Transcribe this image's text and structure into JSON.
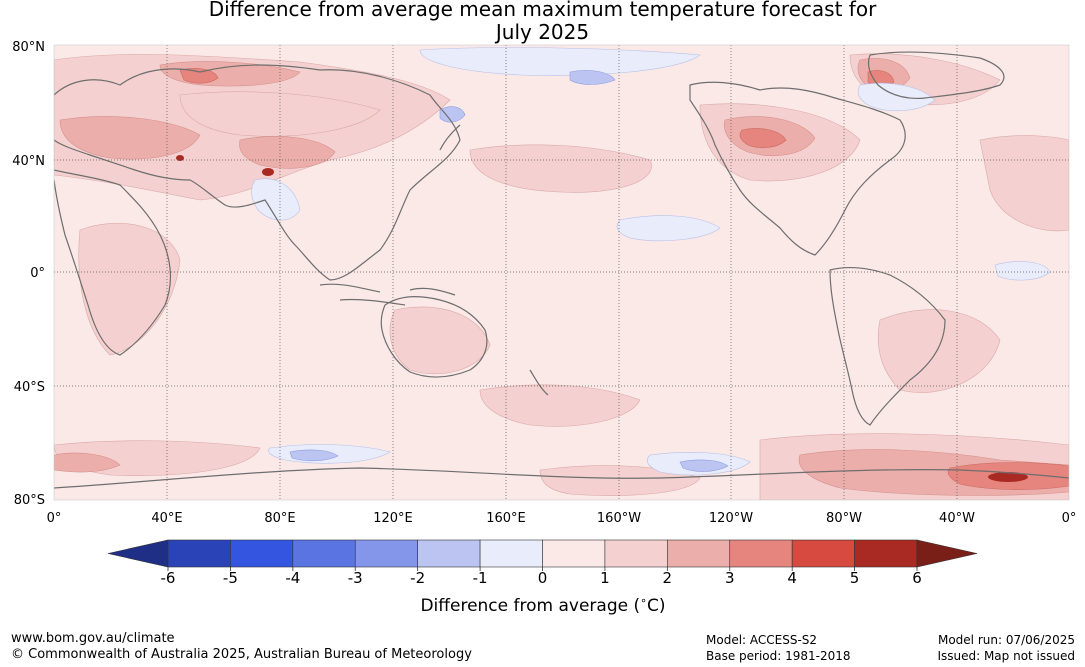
{
  "title": {
    "line1": "Difference from average mean maximum temperature forecast for",
    "line2": "July 2025"
  },
  "map": {
    "lat_labels": [
      "80°N",
      "40°N",
      "0°",
      "40°S",
      "80°S"
    ],
    "lon_labels": [
      "0°",
      "40°E",
      "80°E",
      "120°E",
      "160°E",
      "160°W",
      "120°W",
      "80°W",
      "40°W",
      "0°"
    ],
    "background_color": "#fbe9e8"
  },
  "colorbar": {
    "label": "Difference from average ($^\\circ$C)",
    "label_text": "Difference from average (",
    "label_unit": "C)",
    "ticks": [
      "-6",
      "-5",
      "-4",
      "-3",
      "-2",
      "-1",
      "0",
      "1",
      "2",
      "3",
      "4",
      "5",
      "6"
    ],
    "colors": [
      "#1f2f85",
      "#2a44b8",
      "#3455e0",
      "#5a74e2",
      "#8496e9",
      "#bcc5f2",
      "#e8ecfb",
      "#fbe9e8",
      "#f4d1d0",
      "#ecaeaa",
      "#e6857e",
      "#d74a40",
      "#a92a22",
      "#7a1e18"
    ]
  },
  "footer": {
    "url": "www.bom.gov.au/climate",
    "copyright": "© Commonwealth of Australia 2025, Australian Bureau of Meteorology",
    "model": "Model: ACCESS-S2",
    "base_period": "Base period: 1981-2018",
    "model_run": "Model run: 07/06/2025",
    "issued": "Issued: Map not issued"
  }
}
